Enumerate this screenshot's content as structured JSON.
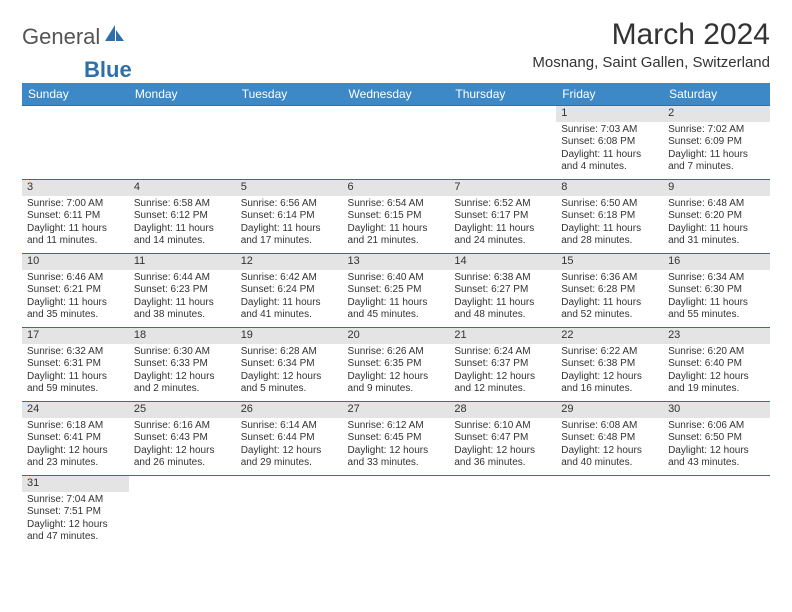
{
  "brand": {
    "word1": "General",
    "word2": "Blue"
  },
  "title": "March 2024",
  "location": "Mosnang, Saint Gallen, Switzerland",
  "colors": {
    "header_bg": "#3d88c6",
    "header_text": "#ffffff",
    "row_border": "#2f6fa8",
    "daynum_bg": "#e4e4e4",
    "text": "#333333",
    "brand_blue": "#2f6fa8"
  },
  "day_headers": [
    "Sunday",
    "Monday",
    "Tuesday",
    "Wednesday",
    "Thursday",
    "Friday",
    "Saturday"
  ],
  "weeks": [
    [
      null,
      null,
      null,
      null,
      null,
      {
        "num": "1",
        "sunrise": "7:03 AM",
        "sunset": "6:08 PM",
        "daylight": "11 hours and 4 minutes."
      },
      {
        "num": "2",
        "sunrise": "7:02 AM",
        "sunset": "6:09 PM",
        "daylight": "11 hours and 7 minutes."
      }
    ],
    [
      {
        "num": "3",
        "sunrise": "7:00 AM",
        "sunset": "6:11 PM",
        "daylight": "11 hours and 11 minutes."
      },
      {
        "num": "4",
        "sunrise": "6:58 AM",
        "sunset": "6:12 PM",
        "daylight": "11 hours and 14 minutes."
      },
      {
        "num": "5",
        "sunrise": "6:56 AM",
        "sunset": "6:14 PM",
        "daylight": "11 hours and 17 minutes."
      },
      {
        "num": "6",
        "sunrise": "6:54 AM",
        "sunset": "6:15 PM",
        "daylight": "11 hours and 21 minutes."
      },
      {
        "num": "7",
        "sunrise": "6:52 AM",
        "sunset": "6:17 PM",
        "daylight": "11 hours and 24 minutes."
      },
      {
        "num": "8",
        "sunrise": "6:50 AM",
        "sunset": "6:18 PM",
        "daylight": "11 hours and 28 minutes."
      },
      {
        "num": "9",
        "sunrise": "6:48 AM",
        "sunset": "6:20 PM",
        "daylight": "11 hours and 31 minutes."
      }
    ],
    [
      {
        "num": "10",
        "sunrise": "6:46 AM",
        "sunset": "6:21 PM",
        "daylight": "11 hours and 35 minutes."
      },
      {
        "num": "11",
        "sunrise": "6:44 AM",
        "sunset": "6:23 PM",
        "daylight": "11 hours and 38 minutes."
      },
      {
        "num": "12",
        "sunrise": "6:42 AM",
        "sunset": "6:24 PM",
        "daylight": "11 hours and 41 minutes."
      },
      {
        "num": "13",
        "sunrise": "6:40 AM",
        "sunset": "6:25 PM",
        "daylight": "11 hours and 45 minutes."
      },
      {
        "num": "14",
        "sunrise": "6:38 AM",
        "sunset": "6:27 PM",
        "daylight": "11 hours and 48 minutes."
      },
      {
        "num": "15",
        "sunrise": "6:36 AM",
        "sunset": "6:28 PM",
        "daylight": "11 hours and 52 minutes."
      },
      {
        "num": "16",
        "sunrise": "6:34 AM",
        "sunset": "6:30 PM",
        "daylight": "11 hours and 55 minutes."
      }
    ],
    [
      {
        "num": "17",
        "sunrise": "6:32 AM",
        "sunset": "6:31 PM",
        "daylight": "11 hours and 59 minutes."
      },
      {
        "num": "18",
        "sunrise": "6:30 AM",
        "sunset": "6:33 PM",
        "daylight": "12 hours and 2 minutes."
      },
      {
        "num": "19",
        "sunrise": "6:28 AM",
        "sunset": "6:34 PM",
        "daylight": "12 hours and 5 minutes."
      },
      {
        "num": "20",
        "sunrise": "6:26 AM",
        "sunset": "6:35 PM",
        "daylight": "12 hours and 9 minutes."
      },
      {
        "num": "21",
        "sunrise": "6:24 AM",
        "sunset": "6:37 PM",
        "daylight": "12 hours and 12 minutes."
      },
      {
        "num": "22",
        "sunrise": "6:22 AM",
        "sunset": "6:38 PM",
        "daylight": "12 hours and 16 minutes."
      },
      {
        "num": "23",
        "sunrise": "6:20 AM",
        "sunset": "6:40 PM",
        "daylight": "12 hours and 19 minutes."
      }
    ],
    [
      {
        "num": "24",
        "sunrise": "6:18 AM",
        "sunset": "6:41 PM",
        "daylight": "12 hours and 23 minutes."
      },
      {
        "num": "25",
        "sunrise": "6:16 AM",
        "sunset": "6:43 PM",
        "daylight": "12 hours and 26 minutes."
      },
      {
        "num": "26",
        "sunrise": "6:14 AM",
        "sunset": "6:44 PM",
        "daylight": "12 hours and 29 minutes."
      },
      {
        "num": "27",
        "sunrise": "6:12 AM",
        "sunset": "6:45 PM",
        "daylight": "12 hours and 33 minutes."
      },
      {
        "num": "28",
        "sunrise": "6:10 AM",
        "sunset": "6:47 PM",
        "daylight": "12 hours and 36 minutes."
      },
      {
        "num": "29",
        "sunrise": "6:08 AM",
        "sunset": "6:48 PM",
        "daylight": "12 hours and 40 minutes."
      },
      {
        "num": "30",
        "sunrise": "6:06 AM",
        "sunset": "6:50 PM",
        "daylight": "12 hours and 43 minutes."
      }
    ],
    [
      {
        "num": "31",
        "sunrise": "7:04 AM",
        "sunset": "7:51 PM",
        "daylight": "12 hours and 47 minutes."
      },
      null,
      null,
      null,
      null,
      null,
      null
    ]
  ],
  "labels": {
    "sunrise": "Sunrise: ",
    "sunset": "Sunset: ",
    "daylight": "Daylight: "
  }
}
